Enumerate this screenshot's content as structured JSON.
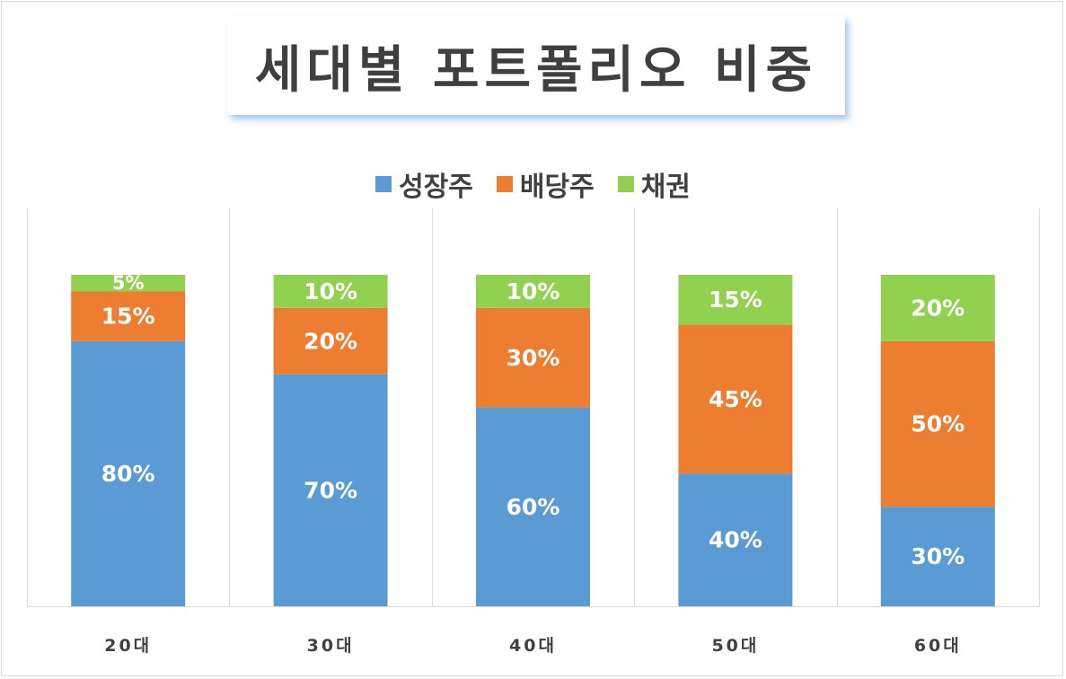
{
  "chart_data": {
    "type": "bar",
    "stacked": true,
    "title": "세대별 포트폴리오 비중",
    "categories": [
      "20대",
      "30대",
      "40대",
      "50대",
      "60대"
    ],
    "series": [
      {
        "name": "성장주",
        "color": "#5b9bd5",
        "values": [
          80,
          70,
          60,
          40,
          30
        ]
      },
      {
        "name": "배당주",
        "color": "#ed7d31",
        "values": [
          15,
          20,
          30,
          45,
          50
        ]
      },
      {
        "name": "채권",
        "color": "#92d050",
        "values": [
          5,
          10,
          10,
          15,
          20
        ]
      }
    ],
    "value_suffix": "%",
    "ylim": [
      0,
      100
    ],
    "legend_position": "top",
    "grid": "vertical separators"
  }
}
